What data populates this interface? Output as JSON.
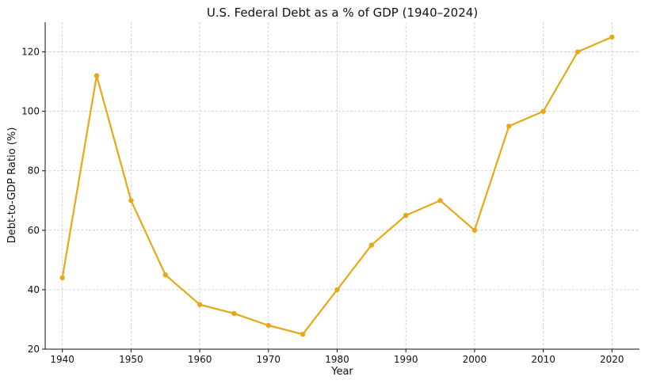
{
  "chart_data": {
    "type": "line",
    "title": "U.S. Federal Debt as a % of GDP (1940–2024)",
    "xlabel": "Year",
    "ylabel": "Debt-to-GDP Ratio (%)",
    "x": [
      1940,
      1945,
      1950,
      1955,
      1960,
      1965,
      1970,
      1975,
      1980,
      1985,
      1990,
      1995,
      2000,
      2005,
      2010,
      2015,
      2020
    ],
    "series": [
      {
        "values": [
          44,
          112,
          70,
          45,
          35,
          32,
          28,
          25,
          40,
          55,
          65,
          70,
          60,
          95,
          100,
          120,
          125
        ],
        "color": "#E6A817"
      }
    ],
    "xlim": [
      1937.5,
      2024
    ],
    "ylim": [
      20,
      130
    ],
    "xticks": [
      "1940",
      "1950",
      "1960",
      "1970",
      "1980",
      "1990",
      "2000",
      "2010",
      "2020"
    ],
    "yticks": [
      "20",
      "40",
      "60",
      "80",
      "100",
      "120"
    ],
    "grid": true,
    "legend": "none"
  }
}
